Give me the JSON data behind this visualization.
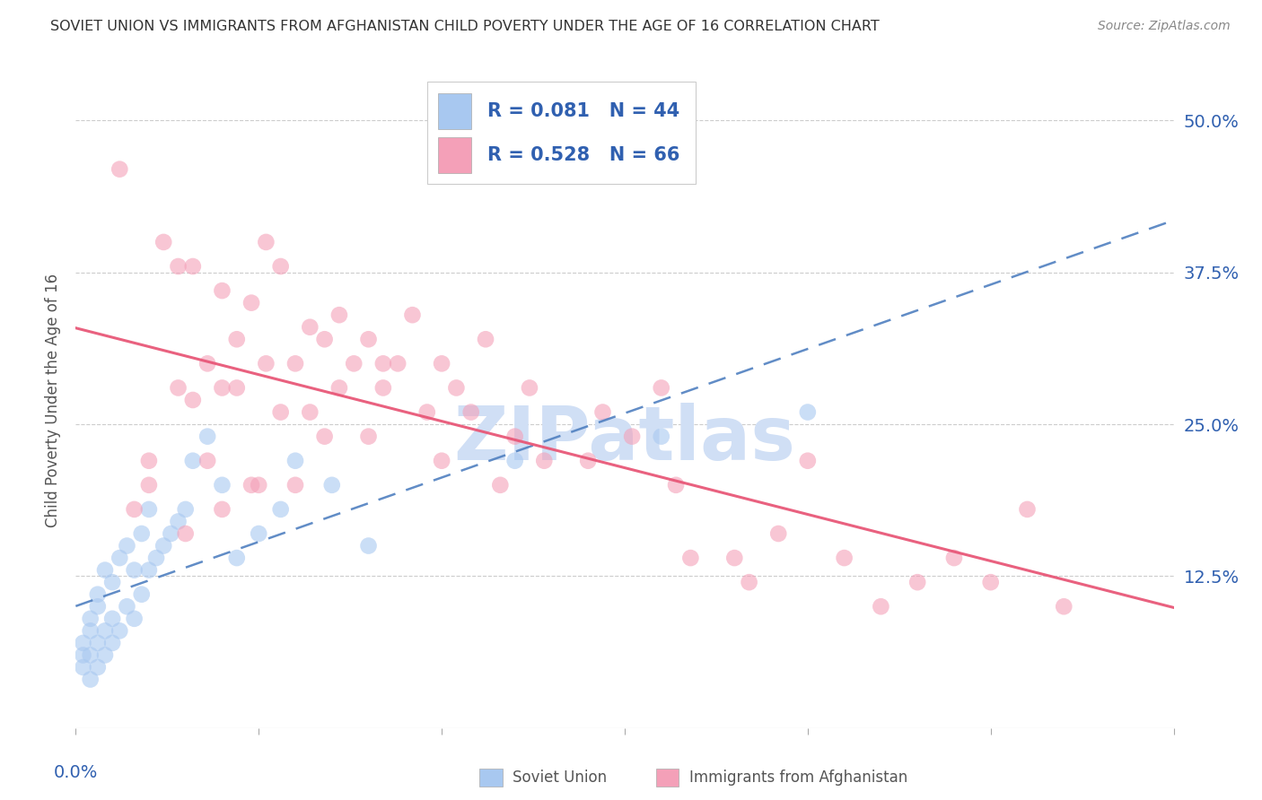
{
  "title": "SOVIET UNION VS IMMIGRANTS FROM AFGHANISTAN CHILD POVERTY UNDER THE AGE OF 16 CORRELATION CHART",
  "source": "Source: ZipAtlas.com",
  "ylabel": "Child Poverty Under the Age of 16",
  "ytick_labels": [
    "50.0%",
    "37.5%",
    "25.0%",
    "12.5%"
  ],
  "ytick_values": [
    0.5,
    0.375,
    0.25,
    0.125
  ],
  "xmin": 0.0,
  "xmax": 0.15,
  "ymin": 0.0,
  "ymax": 0.54,
  "legend_blue_R": "R = 0.081",
  "legend_blue_N": "N = 44",
  "legend_pink_R": "R = 0.528",
  "legend_pink_N": "N = 66",
  "blue_color": "#A8C8F0",
  "pink_color": "#F4A0B8",
  "blue_line_color": "#5080C0",
  "pink_line_color": "#E85878",
  "title_color": "#333333",
  "axis_label_color": "#3060B0",
  "watermark_color": "#D0DFF5",
  "legend_label_blue": "Soviet Union",
  "legend_label_pink": "Immigrants from Afghanistan",
  "blue_scatter_x": [
    0.001,
    0.001,
    0.001,
    0.002,
    0.002,
    0.002,
    0.002,
    0.003,
    0.003,
    0.003,
    0.003,
    0.004,
    0.004,
    0.004,
    0.005,
    0.005,
    0.005,
    0.006,
    0.006,
    0.007,
    0.007,
    0.008,
    0.008,
    0.009,
    0.009,
    0.01,
    0.01,
    0.011,
    0.012,
    0.013,
    0.014,
    0.015,
    0.016,
    0.018,
    0.02,
    0.022,
    0.025,
    0.028,
    0.03,
    0.035,
    0.04,
    0.06,
    0.08,
    0.1
  ],
  "blue_scatter_y": [
    0.05,
    0.06,
    0.07,
    0.04,
    0.06,
    0.08,
    0.09,
    0.05,
    0.07,
    0.1,
    0.11,
    0.06,
    0.08,
    0.13,
    0.07,
    0.09,
    0.12,
    0.08,
    0.14,
    0.1,
    0.15,
    0.09,
    0.13,
    0.11,
    0.16,
    0.13,
    0.18,
    0.14,
    0.15,
    0.16,
    0.17,
    0.18,
    0.22,
    0.24,
    0.2,
    0.14,
    0.16,
    0.18,
    0.22,
    0.2,
    0.15,
    0.22,
    0.24,
    0.26
  ],
  "pink_scatter_x": [
    0.006,
    0.01,
    0.012,
    0.014,
    0.014,
    0.016,
    0.016,
    0.018,
    0.018,
    0.02,
    0.02,
    0.022,
    0.022,
    0.024,
    0.024,
    0.026,
    0.026,
    0.028,
    0.028,
    0.03,
    0.03,
    0.032,
    0.032,
    0.034,
    0.034,
    0.036,
    0.036,
    0.038,
    0.04,
    0.04,
    0.042,
    0.042,
    0.044,
    0.046,
    0.048,
    0.05,
    0.052,
    0.054,
    0.056,
    0.058,
    0.06,
    0.062,
    0.064,
    0.07,
    0.072,
    0.076,
    0.08,
    0.082,
    0.084,
    0.09,
    0.092,
    0.096,
    0.1,
    0.105,
    0.11,
    0.115,
    0.12,
    0.125,
    0.13,
    0.135,
    0.01,
    0.008,
    0.015,
    0.02,
    0.025,
    0.05
  ],
  "pink_scatter_y": [
    0.46,
    0.22,
    0.4,
    0.38,
    0.28,
    0.38,
    0.27,
    0.3,
    0.22,
    0.28,
    0.36,
    0.32,
    0.28,
    0.35,
    0.2,
    0.4,
    0.3,
    0.38,
    0.26,
    0.3,
    0.2,
    0.26,
    0.33,
    0.32,
    0.24,
    0.28,
    0.34,
    0.3,
    0.32,
    0.24,
    0.28,
    0.3,
    0.3,
    0.34,
    0.26,
    0.3,
    0.28,
    0.26,
    0.32,
    0.2,
    0.24,
    0.28,
    0.22,
    0.22,
    0.26,
    0.24,
    0.28,
    0.2,
    0.14,
    0.14,
    0.12,
    0.16,
    0.22,
    0.14,
    0.1,
    0.12,
    0.14,
    0.12,
    0.18,
    0.1,
    0.2,
    0.18,
    0.16,
    0.18,
    0.2,
    0.22
  ]
}
